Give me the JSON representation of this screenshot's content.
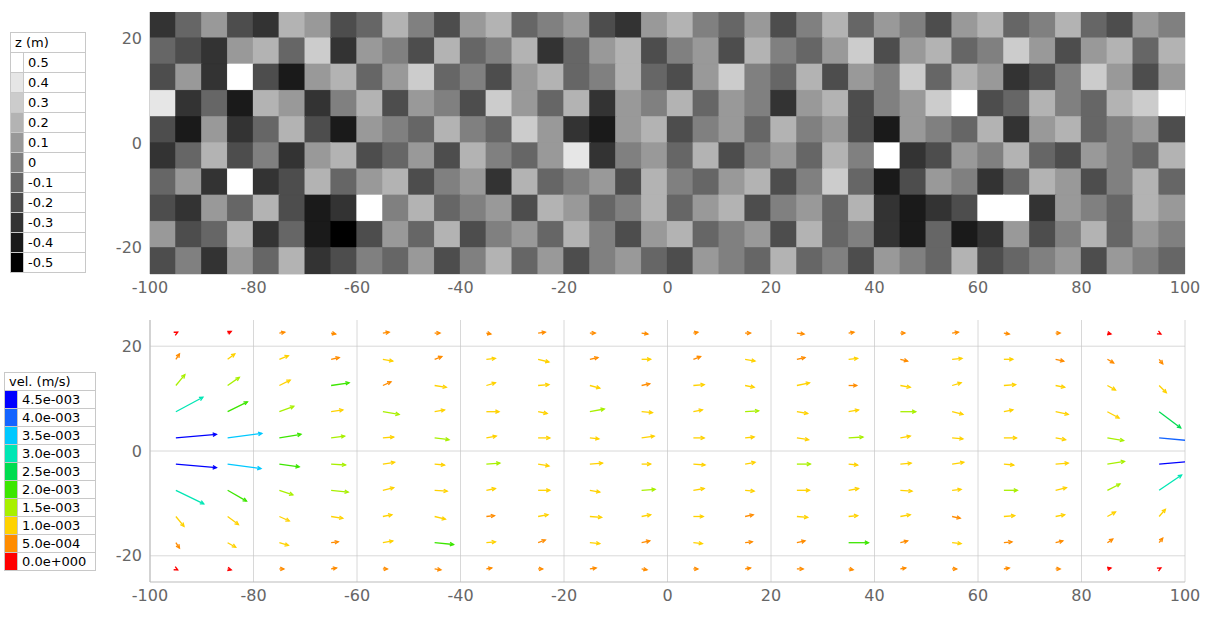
{
  "chart_data": [
    {
      "type": "heatmap",
      "x": [
        -97.5,
        -92.5,
        -87.5,
        -82.5,
        -77.5,
        -72.5,
        -67.5,
        -62.5,
        -57.5,
        -52.5,
        -47.5,
        -42.5,
        -37.5,
        -32.5,
        -27.5,
        -22.5,
        -17.5,
        -12.5,
        -7.5,
        -2.5,
        2.5,
        7.5,
        12.5,
        17.5,
        22.5,
        27.5,
        32.5,
        37.5,
        42.5,
        47.5,
        52.5,
        57.5,
        62.5,
        67.5,
        72.5,
        77.5,
        82.5,
        87.5,
        92.5,
        97.5
      ],
      "y": [
        22.5,
        17.5,
        12.5,
        7.5,
        2.5,
        -2.5,
        -7.5,
        -12.5,
        -17.5,
        -22.5
      ],
      "z": [
        [
          -0.3,
          -0.1,
          0.1,
          -0.2,
          -0.3,
          0.2,
          0.1,
          -0.2,
          -0.1,
          0.2,
          0.0,
          -0.2,
          0.1,
          0.2,
          -0.1,
          0.0,
          0.1,
          -0.2,
          -0.3,
          0.1,
          0.2,
          0.0,
          -0.1,
          0.1,
          -0.2,
          0.0,
          0.2,
          -0.1,
          0.1,
          0.0,
          -0.2,
          0.1,
          0.2,
          -0.1,
          0.0,
          0.2,
          -0.1,
          -0.2,
          0.1,
          0.0
        ],
        [
          -0.1,
          -0.2,
          -0.3,
          0.1,
          0.2,
          -0.1,
          0.3,
          -0.3,
          0.1,
          0.0,
          -0.2,
          0.2,
          -0.1,
          0.0,
          0.2,
          -0.3,
          -0.1,
          0.1,
          0.2,
          -0.2,
          0.0,
          0.1,
          -0.2,
          0.2,
          0.0,
          -0.1,
          0.1,
          0.3,
          -0.2,
          0.1,
          0.2,
          -0.1,
          0.0,
          0.3,
          0.1,
          -0.2,
          0.1,
          0.2,
          -0.1,
          0.2
        ],
        [
          -0.2,
          0.1,
          -0.3,
          0.5,
          -0.2,
          -0.4,
          0.1,
          0.2,
          -0.1,
          0.1,
          0.3,
          -0.1,
          0.0,
          -0.2,
          0.1,
          0.2,
          -0.1,
          0.0,
          0.2,
          -0.1,
          -0.2,
          0.1,
          0.3,
          0.0,
          -0.1,
          0.2,
          -0.2,
          0.1,
          0.0,
          0.3,
          -0.1,
          0.2,
          0.1,
          -0.3,
          -0.2,
          0.0,
          0.3,
          0.1,
          -0.2,
          0.1
        ],
        [
          0.4,
          -0.3,
          -0.1,
          -0.4,
          0.2,
          0.1,
          -0.3,
          0.0,
          0.2,
          -0.2,
          0.1,
          0.0,
          -0.2,
          0.3,
          0.1,
          -0.1,
          0.2,
          -0.3,
          0.1,
          0.0,
          0.2,
          -0.1,
          0.1,
          0.0,
          -0.3,
          0.1,
          0.2,
          -0.2,
          0.0,
          0.1,
          0.3,
          0.5,
          -0.2,
          -0.1,
          0.2,
          0.0,
          -0.1,
          0.2,
          0.3,
          0.5
        ],
        [
          -0.2,
          -0.4,
          0.1,
          -0.3,
          -0.1,
          0.2,
          -0.2,
          -0.4,
          0.1,
          0.0,
          -0.1,
          0.2,
          0.0,
          -0.1,
          0.3,
          0.1,
          -0.3,
          -0.4,
          0.1,
          0.2,
          -0.2,
          0.0,
          0.1,
          -0.1,
          0.2,
          0.0,
          0.1,
          -0.2,
          -0.4,
          0.1,
          0.0,
          -0.1,
          0.2,
          -0.3,
          0.1,
          0.2,
          -0.1,
          0.0,
          0.1,
          -0.2
        ],
        [
          -0.3,
          -0.1,
          0.2,
          -0.2,
          0.0,
          -0.3,
          0.1,
          0.2,
          -0.2,
          -0.1,
          0.1,
          -0.2,
          0.2,
          0.0,
          -0.1,
          0.1,
          0.4,
          -0.3,
          0.0,
          0.1,
          -0.1,
          0.2,
          -0.2,
          0.0,
          0.1,
          -0.1,
          0.2,
          0.0,
          0.5,
          -0.3,
          -0.2,
          0.1,
          0.0,
          0.2,
          -0.1,
          -0.2,
          0.1,
          0.0,
          -0.1,
          0.2
        ],
        [
          -0.1,
          0.1,
          -0.3,
          0.5,
          -0.3,
          -0.2,
          0.2,
          -0.1,
          0.1,
          0.2,
          -0.2,
          0.0,
          0.1,
          -0.3,
          0.2,
          -0.1,
          0.0,
          0.1,
          -0.2,
          0.2,
          0.0,
          -0.1,
          0.1,
          0.2,
          -0.2,
          0.0,
          0.3,
          -0.1,
          -0.4,
          -0.2,
          0.1,
          0.0,
          -0.3,
          -0.1,
          0.2,
          0.1,
          -0.2,
          0.0,
          0.2,
          -0.1
        ],
        [
          -0.2,
          -0.3,
          0.1,
          -0.1,
          0.2,
          -0.2,
          -0.4,
          -0.3,
          0.5,
          0.0,
          0.2,
          -0.1,
          0.0,
          0.1,
          -0.2,
          0.2,
          0.1,
          -0.1,
          0.0,
          0.2,
          -0.1,
          0.1,
          0.2,
          -0.2,
          0.0,
          0.1,
          -0.1,
          0.2,
          -0.3,
          -0.4,
          -0.3,
          -0.2,
          0.5,
          0.5,
          -0.3,
          0.1,
          0.0,
          -0.1,
          0.2,
          0.1
        ],
        [
          0.1,
          -0.2,
          -0.1,
          0.2,
          -0.3,
          -0.1,
          -0.4,
          -0.5,
          -0.2,
          0.1,
          -0.1,
          0.2,
          -0.2,
          0.0,
          0.1,
          -0.1,
          0.2,
          0.0,
          -0.2,
          0.1,
          0.2,
          -0.1,
          0.0,
          0.1,
          -0.2,
          0.2,
          -0.1,
          0.0,
          -0.3,
          -0.4,
          -0.1,
          -0.4,
          -0.3,
          0.1,
          -0.2,
          0.0,
          0.2,
          -0.1,
          0.1,
          0.0
        ],
        [
          -0.2,
          0.0,
          -0.3,
          0.1,
          -0.1,
          0.2,
          -0.3,
          -0.2,
          0.0,
          -0.1,
          0.1,
          -0.2,
          0.0,
          0.2,
          -0.1,
          0.1,
          -0.2,
          0.0,
          0.1,
          -0.1,
          -0.2,
          0.1,
          0.0,
          -0.1,
          0.2,
          -0.1,
          0.0,
          -0.2,
          0.1,
          0.0,
          -0.1,
          0.2,
          -0.2,
          -0.1,
          0.0,
          0.1,
          -0.2,
          0.1,
          0.0,
          -0.1
        ]
      ],
      "xlim": [
        -100,
        100
      ],
      "ylim": [
        -25,
        25
      ],
      "xticks": [
        -100,
        -80,
        -60,
        -40,
        -20,
        0,
        20,
        40,
        60,
        80,
        100
      ],
      "yticks": [
        -20,
        0,
        20
      ],
      "grid": true,
      "colorbar": {
        "title": "z (m)",
        "ticks": [
          0.5,
          0.4,
          0.3,
          0.2,
          0.1,
          0,
          -0.1,
          -0.2,
          -0.3,
          -0.4,
          -0.5
        ],
        "colors": [
          "#ffffff",
          "#e6e6e6",
          "#cccccc",
          "#b3b3b3",
          "#999999",
          "#808080",
          "#666666",
          "#4d4d4d",
          "#333333",
          "#1a1a1a",
          "#000000"
        ]
      }
    },
    {
      "type": "vector",
      "x": [
        -95,
        -85,
        -75,
        -65,
        -55,
        -45,
        -35,
        -25,
        -15,
        -5,
        5,
        15,
        25,
        35,
        45,
        55,
        65,
        75,
        85,
        95
      ],
      "y": [
        22.5,
        17.5,
        12.5,
        7.5,
        2.5,
        -2.5,
        -7.5,
        -12.5,
        -17.5,
        -22.5
      ],
      "u": [
        [
          0.0002,
          0.0004,
          0.0006,
          0.0005,
          0.0007,
          0.0006,
          0.0005,
          0.0008,
          0.0006,
          0.0007,
          0.0005,
          0.0006,
          0.0008,
          0.0006,
          0.0005,
          0.0007,
          0.0006,
          0.0005,
          0.0004,
          0.0002
        ],
        [
          0.0004,
          0.0008,
          0.001,
          0.0009,
          0.0011,
          0.0008,
          0.001,
          0.0012,
          0.0009,
          0.001,
          0.0008,
          0.0011,
          0.0009,
          0.001,
          0.0008,
          0.0011,
          0.001,
          0.0009,
          0.0007,
          0.0004
        ],
        [
          0.001,
          0.0013,
          0.0012,
          0.002,
          0.0009,
          0.0013,
          0.001,
          0.0012,
          0.0011,
          0.0009,
          0.0012,
          0.001,
          0.0014,
          0.0009,
          0.0011,
          0.001,
          0.0013,
          0.001,
          0.0009,
          0.0008
        ],
        [
          0.003,
          0.0022,
          0.0016,
          0.0013,
          0.0018,
          0.0011,
          0.0014,
          0.001,
          0.0016,
          0.0012,
          0.001,
          0.0015,
          0.0012,
          0.0011,
          0.0017,
          0.0012,
          0.001,
          0.0014,
          0.0013,
          0.0024
        ],
        [
          0.0045,
          0.0038,
          0.0024,
          0.0015,
          0.0012,
          0.0016,
          0.0011,
          0.0013,
          0.001,
          0.0014,
          0.0012,
          0.001,
          0.0013,
          0.0016,
          0.0011,
          0.0012,
          0.0014,
          0.0011,
          0.0018,
          0.0044
        ],
        [
          0.0045,
          0.0037,
          0.0022,
          0.0016,
          0.0013,
          0.0011,
          0.0015,
          0.0012,
          0.0014,
          0.001,
          0.0013,
          0.0011,
          0.0015,
          0.001,
          0.0012,
          0.0013,
          0.0011,
          0.0014,
          0.0019,
          0.0045
        ],
        [
          0.0031,
          0.0021,
          0.0015,
          0.0019,
          0.0012,
          0.0014,
          0.001,
          0.0013,
          0.0011,
          0.0015,
          0.0012,
          0.001,
          0.0014,
          0.0011,
          0.0013,
          0.001,
          0.0015,
          0.0012,
          0.0014,
          0.0025
        ],
        [
          0.0009,
          0.0012,
          0.0011,
          0.0013,
          0.001,
          0.0012,
          0.0009,
          0.0011,
          0.0013,
          0.001,
          0.0011,
          0.0009,
          0.0012,
          0.001,
          0.0011,
          0.0009,
          0.0012,
          0.001,
          0.0009,
          0.0007
        ],
        [
          0.0004,
          0.0009,
          0.001,
          0.0008,
          0.0011,
          0.0021,
          0.001,
          0.0008,
          0.0011,
          0.0009,
          0.001,
          0.0008,
          0.0009,
          0.0022,
          0.0008,
          0.001,
          0.0009,
          0.0008,
          0.0006,
          0.0004
        ],
        [
          0.0002,
          0.0004,
          0.0005,
          0.0006,
          0.0005,
          0.0007,
          0.0006,
          0.0005,
          0.0007,
          0.0006,
          0.0005,
          0.0006,
          0.0007,
          0.0005,
          0.0006,
          0.0005,
          0.0006,
          0.0005,
          0.0004,
          0.0002
        ]
      ],
      "v": [
        [
          0.0001,
          0.0002,
          0.0001,
          -0.0001,
          0.0001,
          0.0,
          -0.0001,
          0.0001,
          0.0,
          -0.0001,
          0.0001,
          0.0,
          -0.0001,
          0.0001,
          0.0,
          0.0001,
          -0.0001,
          0.0,
          -0.0001,
          -0.0001
        ],
        [
          0.0006,
          0.0006,
          0.0004,
          0.0002,
          -0.0002,
          0.0003,
          0.0001,
          -0.0003,
          0.0002,
          0.0,
          0.0003,
          -0.0002,
          0.0002,
          0.0001,
          -0.0002,
          0.0001,
          0.0,
          -0.0002,
          -0.0004,
          -0.0005
        ],
        [
          0.0012,
          0.0009,
          0.0006,
          0.0003,
          0.0004,
          -0.0002,
          0.0003,
          0.0001,
          -0.0003,
          0.0002,
          0.0001,
          -0.0002,
          0.0003,
          0.0,
          -0.0002,
          0.0003,
          0.0001,
          -0.0002,
          -0.0005,
          -0.0008
        ],
        [
          0.0016,
          0.0011,
          0.0006,
          0.0002,
          -0.0003,
          0.0002,
          0.0,
          -0.0002,
          0.0003,
          -0.0001,
          0.0002,
          0.0001,
          -0.0002,
          0.0002,
          0.0,
          -0.0003,
          0.0002,
          -0.0003,
          -0.0007,
          -0.0018
        ],
        [
          0.0004,
          0.0005,
          0.0004,
          0.0002,
          0.0001,
          -0.0002,
          0.0002,
          0.0,
          -0.0001,
          0.0002,
          0.0,
          0.0001,
          -0.0002,
          0.0001,
          0.0002,
          -0.0001,
          0.0,
          -0.0002,
          -0.0003,
          -0.0004
        ],
        [
          -0.0004,
          -0.0005,
          -0.0003,
          -0.0001,
          0.0002,
          -0.0001,
          0.0001,
          -0.0002,
          0.0001,
          0.0,
          -0.0001,
          0.0002,
          0.0,
          -0.0001,
          0.0001,
          0.0002,
          -0.0001,
          0.0001,
          0.0003,
          0.0004
        ],
        [
          -0.0015,
          -0.0012,
          -0.0005,
          -0.0002,
          0.0003,
          -0.0001,
          0.0002,
          0.0,
          -0.0002,
          0.0001,
          0.0002,
          -0.0001,
          0.0,
          0.0002,
          -0.0001,
          0.0001,
          0.0,
          0.0003,
          0.0007,
          0.0017
        ],
        [
          -0.0011,
          -0.0009,
          -0.0005,
          -0.0002,
          0.0002,
          -0.0003,
          0.0001,
          0.0002,
          -0.0001,
          0.0002,
          0.0,
          0.0002,
          -0.0001,
          0.0001,
          0.0002,
          -0.0002,
          0.0001,
          0.0002,
          0.0005,
          0.0008
        ],
        [
          -0.0006,
          -0.0005,
          -0.0003,
          0.0001,
          0.0002,
          -0.0002,
          0.0001,
          0.0003,
          -0.0001,
          0.0002,
          -0.0001,
          0.0001,
          0.0002,
          0.0,
          0.0002,
          -0.0001,
          0.0001,
          0.0002,
          0.0004,
          0.0005
        ],
        [
          -0.0001,
          -0.0001,
          0.0,
          0.0001,
          0.0,
          -0.0001,
          0.0001,
          0.0,
          0.0001,
          -0.0001,
          0.0,
          0.0001,
          0.0,
          -0.0001,
          0.0001,
          0.0,
          0.0001,
          0.0,
          0.0001,
          0.0001
        ]
      ],
      "xlim": [
        -100,
        100
      ],
      "ylim": [
        -25,
        25
      ],
      "xticks": [
        -100,
        -80,
        -60,
        -40,
        -20,
        0,
        20,
        40,
        60,
        80,
        100
      ],
      "yticks": [
        -20,
        0,
        20
      ],
      "grid": true,
      "colorbar": {
        "title": "vel. (m/s)",
        "ticks": [
          {
            "value": 0.0045,
            "label": "4.5e-003"
          },
          {
            "value": 0.004,
            "label": "4.0e-003"
          },
          {
            "value": 0.0035,
            "label": "3.5e-003"
          },
          {
            "value": 0.003,
            "label": "3.0e-003"
          },
          {
            "value": 0.0025,
            "label": "2.5e-003"
          },
          {
            "value": 0.002,
            "label": "2.0e-003"
          },
          {
            "value": 0.0015,
            "label": "1.5e-003"
          },
          {
            "value": 0.001,
            "label": "1.0e-003"
          },
          {
            "value": 0.0005,
            "label": "5.0e-004"
          },
          {
            "value": 0,
            "label": "0.0e+000"
          }
        ],
        "colors": [
          "#0000ff",
          "#1464ff",
          "#00c8ff",
          "#00e6b4",
          "#00dc50",
          "#3ce600",
          "#a8f000",
          "#ffd200",
          "#ff8c00",
          "#ff0000"
        ]
      }
    }
  ]
}
